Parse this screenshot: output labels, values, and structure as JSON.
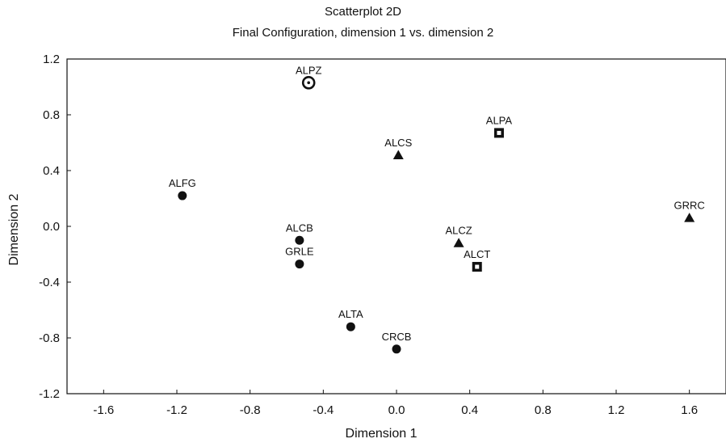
{
  "chart_data": {
    "type": "scatter",
    "title": "Scatterplot 2D",
    "subtitle": "Final Configuration, dimension 1 vs. dimension 2",
    "xlabel": "Dimension 1",
    "ylabel": "Dimension 2",
    "xlim": [
      -1.8,
      1.8
    ],
    "ylim": [
      -1.2,
      1.2
    ],
    "xticks": [
      -1.6,
      -1.2,
      -0.8,
      -0.4,
      0.0,
      0.4,
      0.8,
      1.2,
      1.6
    ],
    "xtick_labels": [
      "-1.6",
      "-1.2",
      "-0.8",
      "-0.4",
      "0.0",
      "0.4",
      "0.8",
      "1.2",
      "1.6"
    ],
    "yticks": [
      1.2,
      0.8,
      0.4,
      0.0,
      -0.4,
      -0.8,
      -1.2
    ],
    "ytick_labels": [
      "1.2",
      "0.8",
      "0.4",
      "0.0",
      "-0.4",
      "-0.8",
      "-1.2"
    ],
    "grid": false,
    "legend": "none",
    "points": [
      {
        "label": "ALPZ",
        "x": -0.48,
        "y": 1.03,
        "marker": "ring-circle"
      },
      {
        "label": "ALPA",
        "x": 0.56,
        "y": 0.67,
        "marker": "square"
      },
      {
        "label": "ALCS",
        "x": 0.01,
        "y": 0.51,
        "marker": "triangle"
      },
      {
        "label": "ALFG",
        "x": -1.17,
        "y": 0.22,
        "marker": "circle"
      },
      {
        "label": "GRRC",
        "x": 1.6,
        "y": 0.06,
        "marker": "triangle"
      },
      {
        "label": "ALCB",
        "x": -0.53,
        "y": -0.1,
        "marker": "circle"
      },
      {
        "label": "ALCZ",
        "x": 0.34,
        "y": -0.12,
        "marker": "triangle"
      },
      {
        "label": "GRLE",
        "x": -0.53,
        "y": -0.27,
        "marker": "circle"
      },
      {
        "label": "ALCT",
        "x": 0.44,
        "y": -0.29,
        "marker": "square"
      },
      {
        "label": "ALTA",
        "x": -0.25,
        "y": -0.72,
        "marker": "circle"
      },
      {
        "label": "CRCB",
        "x": 0.0,
        "y": -0.88,
        "marker": "circle"
      }
    ]
  }
}
